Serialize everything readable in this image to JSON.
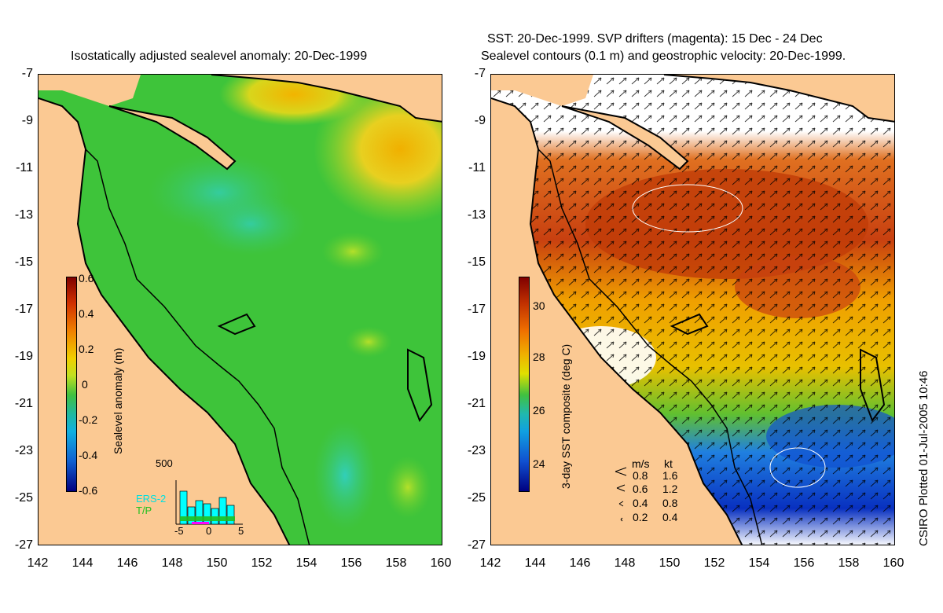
{
  "left_panel": {
    "title": "Isostatically adjusted sealevel anomaly: 20-Dec-1999",
    "colorbar": {
      "title": "Sealevel anomaly (m)",
      "ticks": [
        "0.6",
        "0.4",
        "0.2",
        "0",
        "-0.2",
        "-0.4",
        "-0.6"
      ]
    },
    "histogram": {
      "ymax_label": "500",
      "xticks": [
        "-5",
        "0",
        "5"
      ],
      "legend_ers": "ERS-2",
      "legend_tp": "T/P",
      "ers_color": "#00ffff",
      "tp_color": "#20c020"
    }
  },
  "right_panel": {
    "title_line1": "SST: 20-Dec-1999. SVP drifters (magenta): 15 Dec - 24 Dec",
    "title_line2": "Sealevel contours (0.1 m) and geostrophic velocity: 20-Dec-1999.",
    "colorbar": {
      "title": "3-day SST composite (deg C)",
      "ticks": [
        "30",
        "28",
        "26",
        "24"
      ]
    },
    "velocity_legend": {
      "header_ms": "m/s",
      "header_kt": "kt",
      "rows": [
        {
          "ms": "0.8",
          "kt": "1.6"
        },
        {
          "ms": "0.6",
          "kt": "1.2"
        },
        {
          "ms": "0.4",
          "kt": "0.8"
        },
        {
          "ms": "0.2",
          "kt": "0.4"
        }
      ]
    }
  },
  "axes": {
    "yticks": [
      "-7",
      "-9",
      "-11",
      "-13",
      "-15",
      "-17",
      "-19",
      "-21",
      "-23",
      "-25",
      "-27"
    ],
    "xticks": [
      "142",
      "144",
      "146",
      "148",
      "150",
      "152",
      "154",
      "156",
      "158",
      "160"
    ]
  },
  "credit": "CSIRO Plotted 01-Jul-2005 10:46",
  "colors": {
    "land": "#fbc993",
    "sea_green": "#3cc83c",
    "coast": "#000000"
  }
}
